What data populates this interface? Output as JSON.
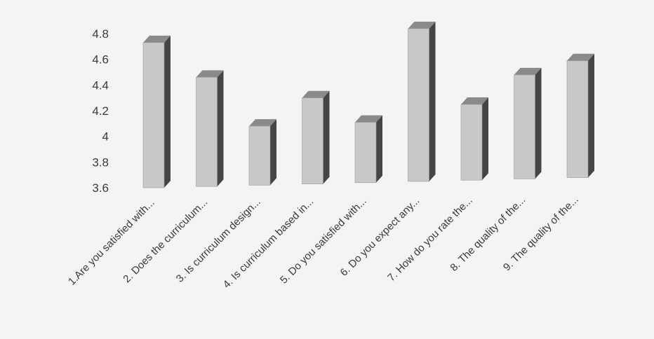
{
  "chart_data": {
    "type": "bar",
    "style": "3d-clustered-column",
    "categories": [
      "1.Are you satisfied with...",
      "2. Does the curriculum...",
      "3. Is curriculum design...",
      "4. Is curriculum based in...",
      "5.  Do you satisfied with...",
      "6. Do you expect any...",
      "7. How do you rate the...",
      "8. The quality of the...",
      "9. The quality of the..."
    ],
    "series": [
      {
        "values": [
          4.73,
          4.45,
          4.06,
          4.27,
          4.07,
          4.79,
          4.19,
          4.41,
          4.51
        ]
      }
    ],
    "yticks": [
      "4.8",
      "4.6",
      "4.4",
      "4.2",
      "4",
      "3.8",
      "3.6"
    ],
    "ylim": [
      3.6,
      4.8
    ],
    "title": "",
    "xlabel": "",
    "ylabel": "",
    "grid": false,
    "legend": "none",
    "colors": {
      "bar_front": "#c8c8c8",
      "bar_side": "#454545",
      "bar_top": "#8a8a8a",
      "background": "#f4f4f2"
    }
  }
}
